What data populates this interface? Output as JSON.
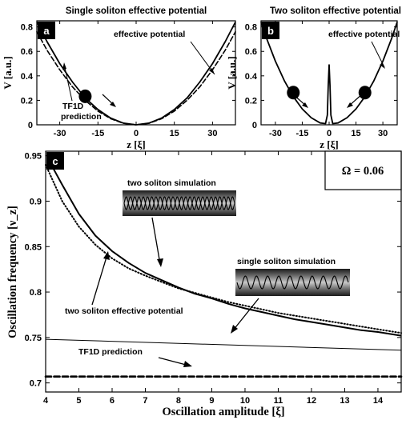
{
  "chart_data": [
    {
      "id": "a",
      "type": "line",
      "panel_label": "a",
      "title": "Single soliton effective potential",
      "xlabel": "z [ξ]",
      "ylabel": "V [a.u.]",
      "xlim": [
        -39,
        39
      ],
      "ylim": [
        0,
        0.85
      ],
      "xticks": [
        -30,
        -15,
        0,
        15,
        30
      ],
      "yticks": [
        0,
        0.2,
        0.4,
        0.6,
        0.8
      ],
      "series": [
        {
          "name": "effective potential",
          "style": "solid",
          "x": [
            -39,
            -35,
            -30,
            -25,
            -20,
            -15,
            -10,
            -5,
            0,
            5,
            10,
            15,
            20,
            25,
            30,
            35,
            39
          ],
          "y": [
            0.84,
            0.68,
            0.5,
            0.35,
            0.22,
            0.125,
            0.055,
            0.014,
            0,
            0.014,
            0.055,
            0.125,
            0.22,
            0.35,
            0.5,
            0.68,
            0.84
          ]
        },
        {
          "name": "TF1D prediction",
          "style": "dashed",
          "x": [
            -39,
            -35,
            -30,
            -25,
            -20,
            -15,
            -10,
            -5,
            0,
            5,
            10,
            15,
            20,
            25,
            30,
            35,
            39
          ],
          "y": [
            0.76,
            0.61,
            0.45,
            0.31,
            0.2,
            0.112,
            0.05,
            0.012,
            0,
            0.012,
            0.05,
            0.112,
            0.2,
            0.31,
            0.45,
            0.61,
            0.76
          ]
        }
      ],
      "annotations": [
        {
          "text": "effective potential"
        },
        {
          "text": "TF1D"
        },
        {
          "text": "prediction"
        }
      ],
      "markers": [
        {
          "x": -20,
          "y": 0.22
        }
      ]
    },
    {
      "id": "b",
      "type": "line",
      "panel_label": "b",
      "title": "Two soliton effective potential",
      "xlabel": "z [ξ]",
      "ylabel": "V [a.u.]",
      "xlim": [
        -38,
        38
      ],
      "ylim": [
        0,
        0.85
      ],
      "xticks": [
        -30,
        -15,
        0,
        15,
        30
      ],
      "yticks": [
        0,
        0.2,
        0.4,
        0.6,
        0.8
      ],
      "series": [
        {
          "name": "effective potential",
          "style": "solid",
          "x": [
            -38,
            -35,
            -30,
            -25,
            -20,
            -15,
            -10,
            -5,
            -2,
            -1,
            -0.5,
            0,
            0.5,
            1,
            2,
            5,
            10,
            15,
            20,
            25,
            30,
            35,
            38
          ],
          "y": [
            0.84,
            0.71,
            0.52,
            0.36,
            0.23,
            0.13,
            0.058,
            0.015,
            0.01,
            0.08,
            0.32,
            0.49,
            0.32,
            0.08,
            0.01,
            0.015,
            0.058,
            0.13,
            0.23,
            0.36,
            0.52,
            0.71,
            0.84
          ]
        }
      ],
      "annotations": [
        {
          "text": "effective potential"
        }
      ],
      "markers": [
        {
          "x": -20,
          "y": 0.25
        },
        {
          "x": 20,
          "y": 0.25
        }
      ]
    },
    {
      "id": "c",
      "type": "line",
      "panel_label": "c",
      "xlabel": "Oscillation amplitude  [ξ]",
      "ylabel": "Oscillation frequency [ν_z]",
      "xlim": [
        4,
        14.7
      ],
      "ylim": [
        0.69,
        0.955
      ],
      "xticks": [
        4,
        5,
        6,
        7,
        8,
        9,
        10,
        11,
        12,
        13,
        14
      ],
      "yticks": [
        0.7,
        0.75,
        0.8,
        0.85,
        0.9,
        0.95
      ],
      "legend_box": "Ω = 0.06",
      "series": [
        {
          "name": "two soliton effective potential",
          "style": "solid-thick",
          "x": [
            4.2,
            4.5,
            5,
            5.5,
            6,
            6.5,
            7,
            7.5,
            8,
            8.5,
            9,
            9.5,
            10,
            10.5,
            11,
            11.5,
            12,
            12.5,
            13,
            13.5,
            14,
            14.7
          ],
          "y": [
            0.938,
            0.918,
            0.886,
            0.862,
            0.845,
            0.832,
            0.821,
            0.813,
            0.805,
            0.798,
            0.793,
            0.787,
            0.782,
            0.778,
            0.774,
            0.77,
            0.767,
            0.764,
            0.761,
            0.758,
            0.756,
            0.752
          ]
        },
        {
          "name": "two soliton simulation",
          "style": "dotted",
          "x": [
            4,
            4.5,
            5,
            5.5,
            6,
            6.5,
            7,
            7.5,
            8,
            8.5,
            9,
            9.5,
            10,
            10.5,
            11,
            11.5,
            12,
            12.5,
            13,
            13.5,
            14,
            14.7
          ],
          "y": [
            0.94,
            0.9,
            0.872,
            0.852,
            0.837,
            0.826,
            0.818,
            0.811,
            0.804,
            0.799,
            0.794,
            0.789,
            0.785,
            0.781,
            0.777,
            0.774,
            0.771,
            0.768,
            0.765,
            0.762,
            0.759,
            0.755
          ]
        },
        {
          "name": "single soliton simulation",
          "style": "solid-thin",
          "x": [
            4,
            14.7
          ],
          "y": [
            0.748,
            0.736
          ]
        },
        {
          "name": "TF1D prediction",
          "style": "dashed-thick",
          "x": [
            4,
            14.7
          ],
          "y": [
            0.707,
            0.707
          ]
        }
      ],
      "annotations": [
        {
          "text": "two soliton simulation"
        },
        {
          "text": "single soliton simulation"
        },
        {
          "text": "two soliton effective potential"
        },
        {
          "text": "TF1D prediction"
        }
      ]
    }
  ]
}
